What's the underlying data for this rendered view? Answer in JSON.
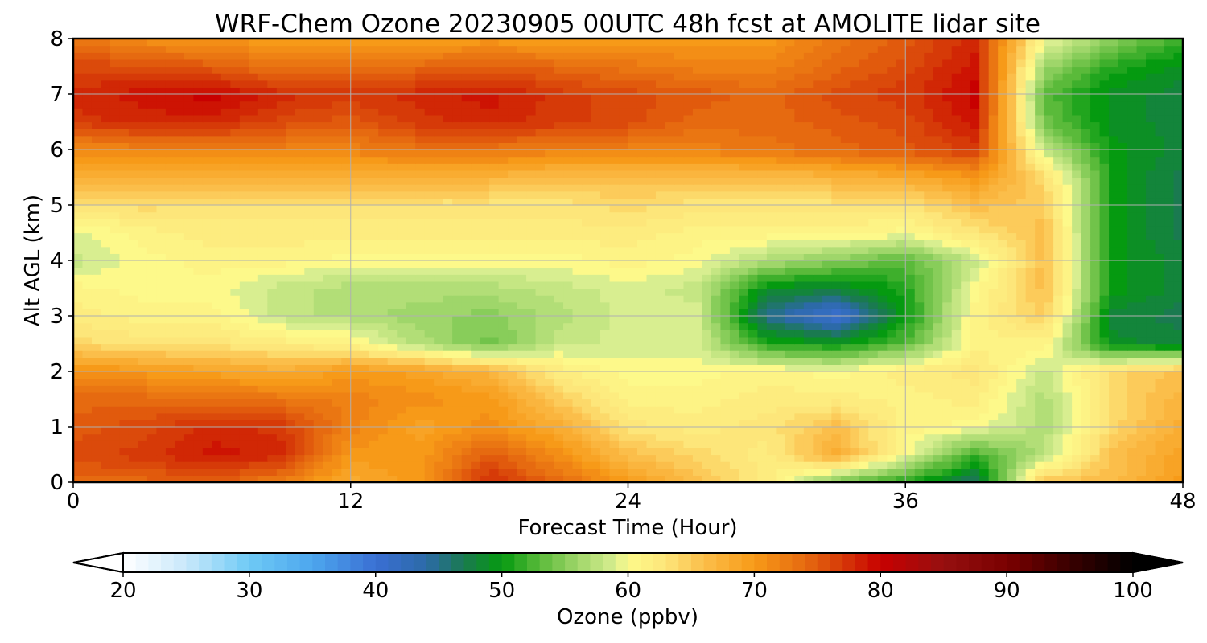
{
  "chart_data": {
    "type": "heatmap",
    "title": "WRF-Chem Ozone  20230905 00UTC 48h fcst at AMOLITE lidar site",
    "xlabel": "Forecast Time (Hour)",
    "ylabel": "Alt AGL (km)",
    "xlim": [
      0,
      48
    ],
    "ylim": [
      0,
      8
    ],
    "x_ticks": [
      "0",
      "12",
      "24",
      "36",
      "48"
    ],
    "y_ticks": [
      "0",
      "1",
      "2",
      "3",
      "4",
      "5",
      "6",
      "7",
      "8"
    ],
    "grid": true,
    "x": [
      0,
      3,
      6,
      9,
      12,
      15,
      18,
      21,
      24,
      27,
      30,
      33,
      36,
      39,
      42,
      45,
      48
    ],
    "y": [
      0,
      0.5,
      1,
      1.5,
      2,
      2.5,
      3,
      3.5,
      4,
      4.5,
      5,
      5.5,
      6,
      6.5,
      7,
      7.5,
      8
    ],
    "values": [
      [
        74,
        74,
        75,
        72,
        68,
        70,
        78,
        74,
        70,
        66,
        62,
        54,
        51,
        46,
        66,
        66,
        70
      ],
      [
        76,
        77,
        79,
        78,
        70,
        70,
        75,
        71,
        66,
        64,
        62,
        68,
        60,
        52,
        57,
        66,
        69
      ],
      [
        75,
        76,
        78,
        77,
        72,
        69,
        71,
        68,
        63,
        62,
        63,
        66,
        61,
        60,
        57,
        64,
        68
      ],
      [
        74,
        74,
        74,
        73,
        72,
        71,
        70,
        65,
        61,
        61,
        62,
        62,
        61,
        62,
        57,
        64,
        67
      ],
      [
        71,
        70,
        69,
        68,
        70,
        69,
        67,
        62,
        60,
        60,
        61,
        60,
        62,
        63,
        58,
        64,
        66
      ],
      [
        64,
        63,
        63,
        62,
        61,
        57,
        54,
        58,
        59,
        59,
        51,
        50,
        53,
        61,
        61,
        49,
        48
      ],
      [
        62,
        61,
        61,
        58,
        57,
        56,
        55,
        57,
        59,
        59,
        45,
        40,
        50,
        61,
        65,
        48,
        47
      ],
      [
        61,
        60,
        60,
        58,
        57,
        57,
        57,
        58,
        59,
        58,
        49,
        48,
        51,
        60,
        66,
        50,
        48
      ],
      [
        58,
        60,
        61,
        61,
        60,
        60,
        60,
        60,
        61,
        60,
        57,
        55,
        53,
        58,
        66,
        50,
        48
      ],
      [
        59,
        61,
        62,
        62,
        62,
        62,
        62,
        62,
        62,
        61,
        61,
        61,
        60,
        63,
        66,
        50,
        47
      ],
      [
        63,
        64,
        63,
        63,
        63,
        63,
        63,
        63,
        64,
        63,
        63,
        63,
        63,
        66,
        65,
        50,
        47
      ],
      [
        67,
        67,
        67,
        67,
        67,
        67,
        67,
        66,
        66,
        66,
        66,
        67,
        68,
        70,
        64,
        50,
        47
      ],
      [
        71,
        72,
        72,
        72,
        72,
        73,
        73,
        72,
        72,
        72,
        73,
        74,
        75,
        77,
        58,
        50,
        48
      ],
      [
        77,
        78,
        78,
        76,
        75,
        77,
        78,
        77,
        76,
        74,
        74,
        75,
        76,
        79,
        54,
        49,
        48
      ],
      [
        78,
        79,
        80,
        78,
        77,
        78,
        79,
        77,
        76,
        75,
        74,
        76,
        77,
        80,
        53,
        49,
        48
      ],
      [
        76,
        76,
        75,
        73,
        73,
        74,
        75,
        74,
        73,
        72,
        72,
        74,
        76,
        79,
        56,
        51,
        49
      ],
      [
        73,
        71,
        70,
        70,
        70,
        69,
        70,
        69,
        70,
        70,
        70,
        73,
        75,
        78,
        60,
        55,
        52
      ]
    ],
    "colorbar": {
      "label": "Ozone  (ppbv)",
      "vmin": 20,
      "vmax": 100,
      "ticks": [
        "20",
        "30",
        "40",
        "50",
        "60",
        "70",
        "80",
        "90",
        "100"
      ],
      "extend": "both",
      "stops": [
        [
          20,
          "#ffffff"
        ],
        [
          25,
          "#c8e8fa"
        ],
        [
          30,
          "#6ecaf5"
        ],
        [
          35,
          "#4da6ee"
        ],
        [
          40,
          "#3a6fd3"
        ],
        [
          44,
          "#2c6aa8"
        ],
        [
          47,
          "#1a7a50"
        ],
        [
          50,
          "#059a10"
        ],
        [
          53,
          "#5aba3a"
        ],
        [
          56,
          "#9fd66a"
        ],
        [
          59,
          "#d8ee90"
        ],
        [
          60,
          "#fdf98a"
        ],
        [
          63,
          "#fde67a"
        ],
        [
          66,
          "#fbbe4a"
        ],
        [
          70,
          "#f79a18"
        ],
        [
          74,
          "#e66a10"
        ],
        [
          77,
          "#d63a08"
        ],
        [
          80,
          "#c80000"
        ],
        [
          85,
          "#961010"
        ],
        [
          90,
          "#7a0000"
        ],
        [
          95,
          "#3a0000"
        ],
        [
          100,
          "#000000"
        ]
      ]
    }
  }
}
